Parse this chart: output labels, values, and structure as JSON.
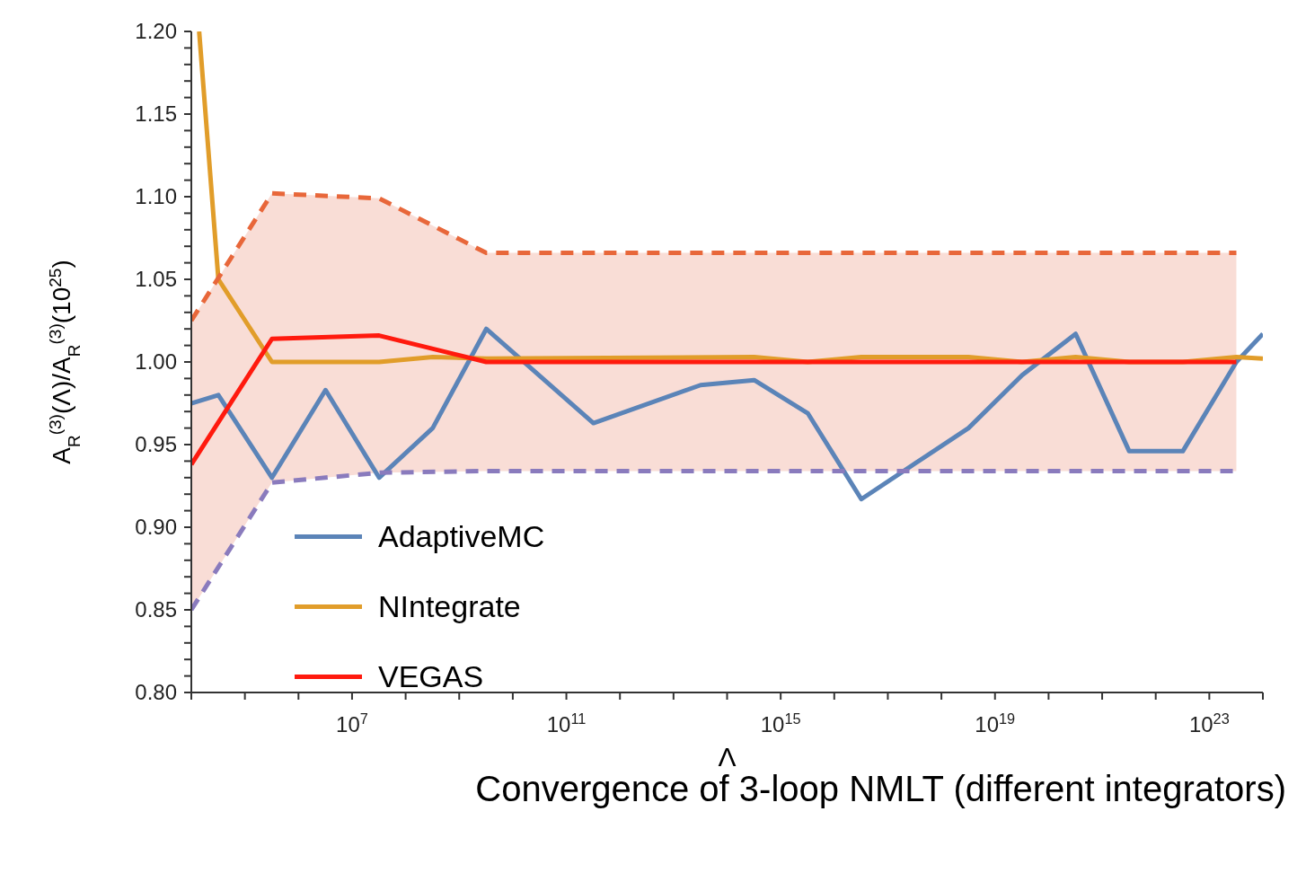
{
  "chart_data": {
    "type": "line",
    "xlabel": "Λ",
    "ylabel": "A$_{R}$$^{(3)}$(Λ)/A$_{R}$$^{(3)}$(10$^{25}$)",
    "annotations": [
      "Convergence of 3-loop NMLT (different integrators)"
    ],
    "log": "x",
    "legend": "bottom left",
    "marker": "none",
    "line_style": "solid",
    "xlim": [
      10000.0,
      1e+24
    ],
    "xticks": [
      {
        "value": 10000.0,
        "label": null
      },
      {
        "value": 100000.0,
        "label": null
      },
      {
        "value": 1000000.0,
        "label": null
      },
      {
        "value": 10000000.0,
        "label": "10$^{7}$"
      },
      {
        "value": 100000000.0,
        "label": null
      },
      {
        "value": 1000000000.0,
        "label": null
      },
      {
        "value": 10000000000.0,
        "label": null
      },
      {
        "value": 100000000000.0,
        "label": "10$^{11}$"
      },
      {
        "value": 1000000000000.0,
        "label": null
      },
      {
        "value": 10000000000000.0,
        "label": null
      },
      {
        "value": 100000000000000.0,
        "label": null
      },
      {
        "value": 1000000000000000.0,
        "label": "10$^{15}$"
      },
      {
        "value": 1e+16,
        "label": null
      },
      {
        "value": 1e+17,
        "label": null
      },
      {
        "value": 1e+18,
        "label": null
      },
      {
        "value": 1e+19,
        "label": "10$^{19}$"
      },
      {
        "value": 1e+20,
        "label": null
      },
      {
        "value": 1e+21,
        "label": null
      },
      {
        "value": 1e+22,
        "label": null
      },
      {
        "value": 1e+23,
        "label": "10$^{23}$"
      },
      {
        "value": 1e+24,
        "label": null
      }
    ],
    "ylim": [
      0.8,
      1.2
    ],
    "yticks": [
      {
        "value": 0.8,
        "label": "0.80"
      },
      {
        "value": 0.81,
        "label": null
      },
      {
        "value": 0.82,
        "label": null
      },
      {
        "value": 0.83,
        "label": null
      },
      {
        "value": 0.84,
        "label": null
      },
      {
        "value": 0.85,
        "label": "0.85"
      },
      {
        "value": 0.86,
        "label": null
      },
      {
        "value": 0.87,
        "label": null
      },
      {
        "value": 0.88,
        "label": null
      },
      {
        "value": 0.89,
        "label": null
      },
      {
        "value": 0.9,
        "label": "0.90"
      },
      {
        "value": 0.91,
        "label": null
      },
      {
        "value": 0.92,
        "label": null
      },
      {
        "value": 0.93,
        "label": null
      },
      {
        "value": 0.94,
        "label": null
      },
      {
        "value": 0.95,
        "label": "0.95"
      },
      {
        "value": 0.96,
        "label": null
      },
      {
        "value": 0.97,
        "label": null
      },
      {
        "value": 0.98,
        "label": null
      },
      {
        "value": 0.99,
        "label": null
      },
      {
        "value": 1.0,
        "label": "1.00"
      },
      {
        "value": 1.01,
        "label": null
      },
      {
        "value": 1.02,
        "label": null
      },
      {
        "value": 1.03,
        "label": null
      },
      {
        "value": 1.04,
        "label": null
      },
      {
        "value": 1.05,
        "label": "1.05"
      },
      {
        "value": 1.06,
        "label": null
      },
      {
        "value": 1.07,
        "label": null
      },
      {
        "value": 1.08,
        "label": null
      },
      {
        "value": 1.09,
        "label": null
      },
      {
        "value": 1.1,
        "label": "1.10"
      },
      {
        "value": 1.11,
        "label": null
      },
      {
        "value": 1.12,
        "label": null
      },
      {
        "value": 1.13,
        "label": null
      },
      {
        "value": 1.14,
        "label": null
      },
      {
        "value": 1.15,
        "label": "1.15"
      },
      {
        "value": 1.16,
        "label": null
      },
      {
        "value": 1.17,
        "label": null
      },
      {
        "value": 1.18,
        "label": null
      },
      {
        "value": 1.19,
        "label": null
      },
      {
        "value": 1.2,
        "label": "1.20"
      }
    ],
    "series": [
      {
        "name": "AdaptiveMC",
        "color": "#5b84b8",
        "x": [
          10000.0,
          32000.0,
          320000.0,
          3200000.0,
          32000000.0,
          320000000.0,
          3200000000.0,
          320000000000.0,
          32000000000000.0,
          320000000000000.0,
          3200000000000000.0,
          3.2e+16,
          3.2e+18,
          3.2e+19,
          3.2e+20,
          3.2e+21,
          3.2e+22,
          3.2e+23,
          1e+24
        ],
        "values": [
          0.975,
          0.98,
          0.93,
          0.983,
          0.93,
          0.96,
          1.02,
          0.963,
          0.986,
          0.989,
          0.969,
          0.917,
          0.96,
          0.992,
          1.017,
          0.946,
          0.946,
          1.0,
          1.017
        ]
      },
      {
        "name": "NIntegrate",
        "color": "#e19d2a",
        "x": [
          14000.0,
          32000.0,
          320000.0,
          32000000.0,
          320000000.0,
          3200000000.0,
          320000000000000.0,
          3200000000000000.0,
          3.2e+16,
          3.2e+18,
          3.2e+19,
          3.2e+20,
          3.2e+21,
          3.2e+22,
          3.2e+23,
          1e+24
        ],
        "values": [
          1.2,
          1.05,
          1.0,
          1.0,
          1.003,
          1.002,
          1.003,
          1.0,
          1.003,
          1.003,
          1.0,
          1.003,
          1.0,
          1.0,
          1.003,
          1.002
        ]
      },
      {
        "name": "VEGAS",
        "color": "#ff1a0e",
        "x": [
          10000.0,
          320000.0,
          32000000.0,
          3200000000.0,
          3.2e+23
        ],
        "values": [
          0.938,
          1.014,
          1.016,
          1.0,
          1.0
        ],
        "lower": [
          0.85,
          0.927,
          0.933,
          0.934,
          0.934
        ],
        "upper": [
          1.025,
          1.102,
          1.099,
          1.066,
          1.066
        ]
      },
      {
        "color": "#e8673a",
        "line_style": "dashed",
        "x": [
          10000.0,
          320000.0,
          32000000.0,
          3200000000.0,
          3.2e+23
        ],
        "values": [
          1.025,
          1.102,
          1.099,
          1.066,
          1.066
        ]
      },
      {
        "color": "#8a7bbd",
        "line_style": "dashed",
        "x": [
          10000.0,
          320000.0,
          32000000.0,
          3200000000.0,
          3.2e+23
        ],
        "values": [
          0.85,
          0.927,
          0.933,
          0.934,
          0.934
        ]
      }
    ]
  }
}
